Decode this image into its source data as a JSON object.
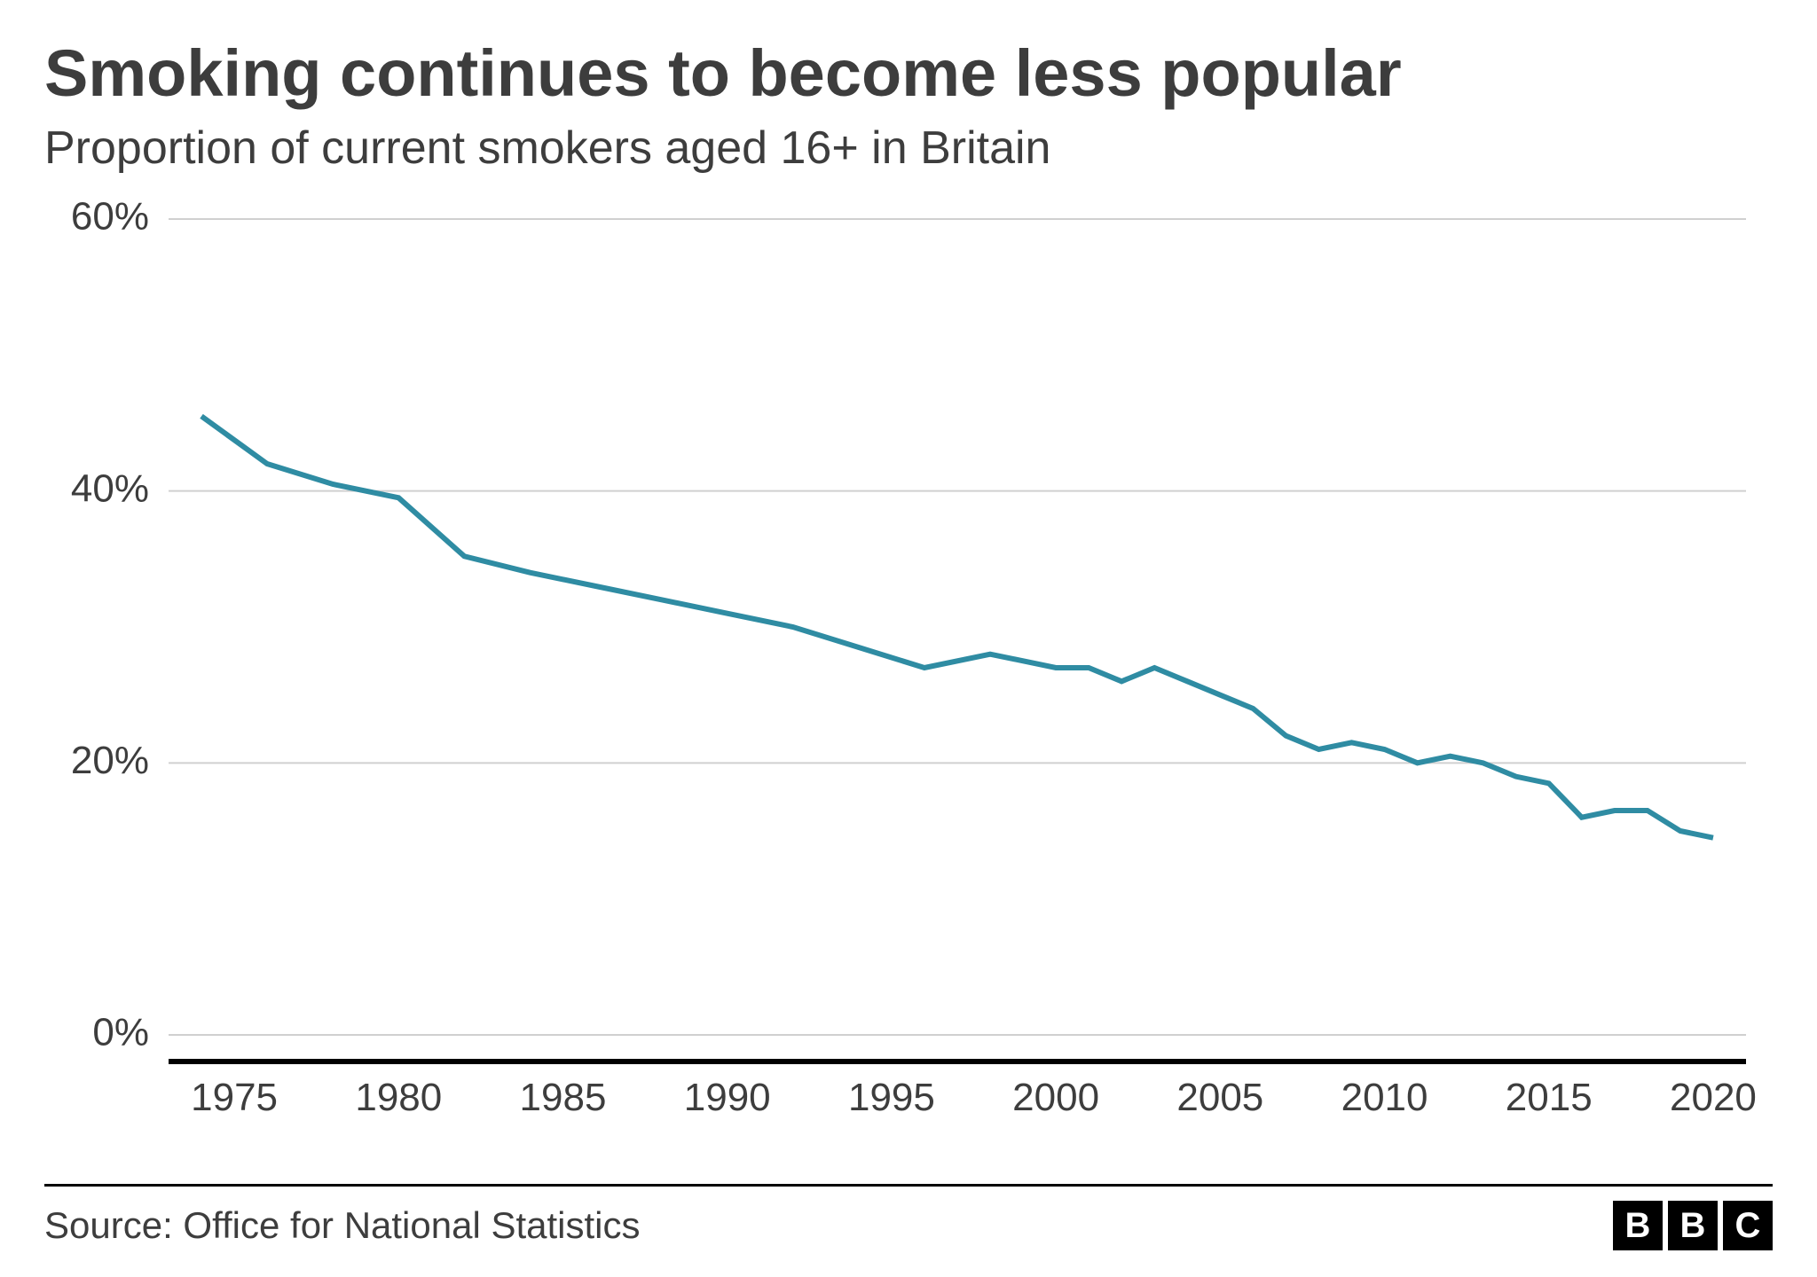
{
  "title": "Smoking continues to become less popular",
  "subtitle": "Proportion of current smokers aged 16+ in Britain",
  "source": "Source: Office for National Statistics",
  "logo_letters": [
    "B",
    "B",
    "C"
  ],
  "chart": {
    "type": "line",
    "line_color": "#2f8ca3",
    "line_width": 6,
    "background_color": "#ffffff",
    "grid_color": "#d0d0d0",
    "baseline_color": "#000000",
    "text_color": "#3d3d3d",
    "xlim": [
      1973,
      2021
    ],
    "ylim": [
      0,
      60
    ],
    "y_ticks": [
      0,
      20,
      40,
      60
    ],
    "y_tick_labels": [
      "0%",
      "20%",
      "40%",
      "60%"
    ],
    "x_ticks": [
      1975,
      1980,
      1985,
      1990,
      1995,
      2000,
      2005,
      2010,
      2015,
      2020
    ],
    "x_tick_labels": [
      "1975",
      "1980",
      "1985",
      "1990",
      "1995",
      "2000",
      "2005",
      "2010",
      "2015",
      "2020"
    ],
    "tick_fontsize": 44,
    "series": {
      "years": [
        1974,
        1976,
        1978,
        1980,
        1982,
        1984,
        1986,
        1988,
        1990,
        1992,
        1994,
        1996,
        1998,
        2000,
        2001,
        2002,
        2003,
        2004,
        2005,
        2006,
        2007,
        2008,
        2009,
        2010,
        2011,
        2012,
        2013,
        2014,
        2015,
        2016,
        2017,
        2018,
        2019,
        2020
      ],
      "values": [
        45.5,
        42,
        40.5,
        39.5,
        35.2,
        34,
        33,
        32,
        31,
        30,
        28.5,
        27,
        28,
        27,
        27,
        26,
        27,
        26,
        25,
        24,
        22,
        21,
        21.5,
        21,
        20,
        20.5,
        20,
        19,
        18.5,
        16,
        16.5,
        16.5,
        15,
        14.5
      ]
    }
  }
}
